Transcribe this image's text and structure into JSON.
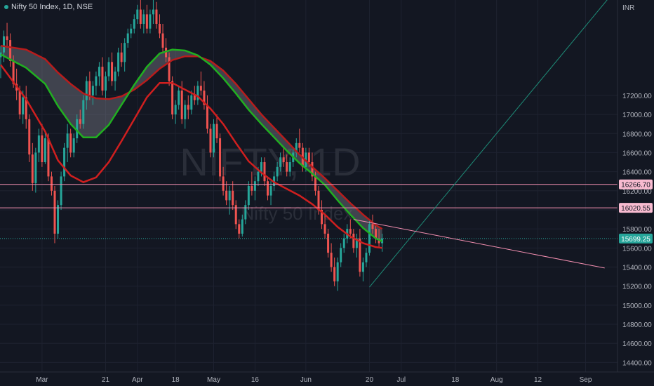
{
  "header": {
    "title": "Nifty 50 Index, 1D, NSE"
  },
  "watermark": {
    "symbol": "NIFTY, 1D",
    "name": "Nifty 50 Index"
  },
  "colors": {
    "background": "#131722",
    "grid": "#1e2230",
    "up": "#26a69a",
    "down": "#ef5350",
    "ma_fast": "#d01f1f",
    "ma_green": "#20b020",
    "ma_slow": "#b81c1c",
    "hline": "#f48fb1",
    "trend_up": "#1e8c78",
    "trend_down": "#f48fb1"
  },
  "chart_data": {
    "type": "candlestick",
    "currency": "INR",
    "ylim": [
      14300,
      18200
    ],
    "y_ticks": [
      "14400.00",
      "14600.00",
      "14800.00",
      "15000.00",
      "15200.00",
      "15400.00",
      "15600.00",
      "15800.00",
      "16000.00",
      "16200.00",
      "16400.00",
      "16600.00",
      "16800.00",
      "17000.00",
      "17200.00"
    ],
    "x_labels": [
      {
        "day": 13,
        "label": "Mar"
      },
      {
        "day": 33,
        "label": "21"
      },
      {
        "day": 43,
        "label": "Apr"
      },
      {
        "day": 55,
        "label": "18"
      },
      {
        "day": 67,
        "label": "May"
      },
      {
        "day": 80,
        "label": "16"
      },
      {
        "day": 96,
        "label": "Jun"
      },
      {
        "day": 116,
        "label": "20"
      },
      {
        "day": 126,
        "label": "Jul"
      },
      {
        "day": 143,
        "label": "18"
      },
      {
        "day": 156,
        "label": "Aug"
      },
      {
        "day": 169,
        "label": "12"
      },
      {
        "day": 184,
        "label": "Sep"
      }
    ],
    "candles": [
      [
        0,
        17600,
        17720,
        17380,
        17650
      ],
      [
        1,
        17650,
        17880,
        17550,
        17820
      ],
      [
        2,
        17820,
        17960,
        17700,
        17780
      ],
      [
        3,
        17780,
        17850,
        17500,
        17560
      ],
      [
        4,
        17560,
        17620,
        17280,
        17320
      ],
      [
        5,
        17320,
        17480,
        17150,
        17250
      ],
      [
        6,
        17250,
        17300,
        16950,
        17000
      ],
      [
        7,
        17000,
        17250,
        16900,
        17180
      ],
      [
        8,
        17180,
        17300,
        16850,
        16950
      ],
      [
        9,
        16950,
        17000,
        16500,
        16580
      ],
      [
        10,
        16580,
        16700,
        16200,
        16280
      ],
      [
        11,
        16280,
        16650,
        16180,
        16600
      ],
      [
        12,
        16600,
        16850,
        16500,
        16780
      ],
      [
        13,
        16780,
        16900,
        16450,
        16500
      ],
      [
        14,
        16500,
        16820,
        16480,
        16750
      ],
      [
        15,
        16750,
        16800,
        16300,
        16350
      ],
      [
        16,
        16350,
        16400,
        16150,
        16200
      ],
      [
        17,
        16200,
        16250,
        15650,
        15750
      ],
      [
        18,
        15750,
        16100,
        15700,
        16050
      ],
      [
        19,
        16050,
        16400,
        16000,
        16350
      ],
      [
        20,
        16350,
        16700,
        16300,
        16650
      ],
      [
        21,
        16650,
        16900,
        16500,
        16800
      ],
      [
        22,
        16800,
        16850,
        16550,
        16600
      ],
      [
        23,
        16600,
        16800,
        16550,
        16750
      ],
      [
        24,
        16750,
        17000,
        16700,
        16950
      ],
      [
        25,
        16950,
        17050,
        16850,
        16900
      ],
      [
        26,
        16900,
        17200,
        16850,
        17150
      ],
      [
        27,
        17150,
        17400,
        17050,
        17350
      ],
      [
        28,
        17350,
        17450,
        17150,
        17200
      ],
      [
        29,
        17200,
        17350,
        17100,
        17300
      ],
      [
        30,
        17300,
        17450,
        17200,
        17400
      ],
      [
        31,
        17400,
        17550,
        17300,
        17500
      ],
      [
        32,
        17500,
        17600,
        17200,
        17250
      ],
      [
        33,
        17250,
        17450,
        17150,
        17400
      ],
      [
        34,
        17400,
        17600,
        17350,
        17550
      ],
      [
        35,
        17550,
        17650,
        17300,
        17350
      ],
      [
        36,
        17350,
        17500,
        17250,
        17450
      ],
      [
        37,
        17450,
        17700,
        17400,
        17650
      ],
      [
        38,
        17650,
        17750,
        17500,
        17550
      ],
      [
        39,
        17550,
        17800,
        17450,
        17750
      ],
      [
        40,
        17750,
        17900,
        17700,
        17850
      ],
      [
        41,
        17850,
        17950,
        17800,
        17900
      ],
      [
        42,
        17900,
        18050,
        17850,
        18000
      ],
      [
        43,
        18000,
        18150,
        17950,
        18100
      ],
      [
        44,
        18100,
        18200,
        17900,
        17950
      ],
      [
        45,
        17950,
        18100,
        17850,
        18050
      ],
      [
        46,
        18050,
        18150,
        17850,
        17900
      ],
      [
        47,
        17900,
        18100,
        17850,
        18050
      ],
      [
        48,
        18050,
        18200,
        17950,
        18100
      ],
      [
        49,
        18100,
        18180,
        17900,
        17950
      ],
      [
        50,
        17950,
        18050,
        17800,
        17850
      ],
      [
        51,
        17850,
        17950,
        17650,
        17700
      ],
      [
        52,
        17700,
        17800,
        17550,
        17600
      ],
      [
        53,
        17600,
        17650,
        17300,
        17350
      ],
      [
        54,
        17350,
        17400,
        16950,
        17000
      ],
      [
        55,
        17000,
        17150,
        16900,
        17100
      ],
      [
        56,
        17100,
        17300,
        17050,
        17250
      ],
      [
        57,
        17250,
        17350,
        16900,
        16950
      ],
      [
        58,
        16950,
        17150,
        16850,
        17100
      ],
      [
        59,
        17100,
        17200,
        16950,
        17050
      ],
      [
        60,
        17050,
        17250,
        17000,
        17200
      ],
      [
        61,
        17200,
        17300,
        17100,
        17150
      ],
      [
        62,
        17150,
        17350,
        17100,
        17300
      ],
      [
        63,
        17300,
        17450,
        17200,
        17250
      ],
      [
        64,
        17250,
        17350,
        17050,
        17100
      ],
      [
        65,
        17100,
        17200,
        16800,
        16850
      ],
      [
        66,
        16850,
        16900,
        16550,
        16600
      ],
      [
        67,
        16600,
        16950,
        16550,
        16900
      ],
      [
        68,
        16900,
        17000,
        16700,
        16750
      ],
      [
        69,
        16750,
        16800,
        16300,
        16350
      ],
      [
        70,
        16350,
        16450,
        16150,
        16200
      ],
      [
        71,
        16200,
        16300,
        16050,
        16100
      ],
      [
        72,
        16100,
        16250,
        15950,
        16200
      ],
      [
        73,
        16200,
        16300,
        16000,
        16050
      ],
      [
        74,
        16050,
        16100,
        15800,
        15850
      ],
      [
        75,
        15850,
        15900,
        15700,
        15750
      ],
      [
        76,
        15750,
        15950,
        15720,
        15900
      ],
      [
        77,
        15900,
        16100,
        15850,
        16050
      ],
      [
        78,
        16050,
        16300,
        16000,
        16250
      ],
      [
        79,
        16250,
        16400,
        16150,
        16200
      ],
      [
        80,
        16200,
        16350,
        16100,
        16300
      ],
      [
        81,
        16300,
        16450,
        16250,
        16400
      ],
      [
        82,
        16400,
        16550,
        16350,
        16500
      ],
      [
        83,
        16500,
        16550,
        16250,
        16300
      ],
      [
        84,
        16300,
        16350,
        16100,
        16150
      ],
      [
        85,
        16150,
        16300,
        16050,
        16250
      ],
      [
        86,
        16250,
        16400,
        16200,
        16350
      ],
      [
        87,
        16350,
        16500,
        16300,
        16450
      ],
      [
        88,
        16450,
        16600,
        16400,
        16550
      ],
      [
        89,
        16550,
        16650,
        16450,
        16500
      ],
      [
        90,
        16500,
        16580,
        16350,
        16400
      ],
      [
        91,
        16400,
        16550,
        16350,
        16500
      ],
      [
        92,
        16500,
        16650,
        16450,
        16600
      ],
      [
        93,
        16600,
        16750,
        16550,
        16700
      ],
      [
        94,
        16700,
        16850,
        16600,
        16650
      ],
      [
        95,
        16650,
        16700,
        16400,
        16450
      ],
      [
        96,
        16450,
        16650,
        16400,
        16600
      ],
      [
        97,
        16600,
        16650,
        16450,
        16500
      ],
      [
        98,
        16500,
        16600,
        16300,
        16350
      ],
      [
        99,
        16350,
        16400,
        16150,
        16200
      ],
      [
        100,
        16200,
        16250,
        15950,
        16000
      ],
      [
        101,
        16000,
        16100,
        15800,
        15850
      ],
      [
        102,
        15850,
        15950,
        15700,
        15750
      ],
      [
        103,
        15750,
        15800,
        15500,
        15550
      ],
      [
        104,
        15550,
        15650,
        15350,
        15400
      ],
      [
        105,
        15400,
        15500,
        15200,
        15250
      ],
      [
        106,
        15250,
        15500,
        15150,
        15450
      ],
      [
        107,
        15450,
        15650,
        15400,
        15600
      ],
      [
        108,
        15600,
        15750,
        15550,
        15700
      ],
      [
        109,
        15700,
        15850,
        15650,
        15800
      ],
      [
        110,
        15800,
        15900,
        15700,
        15750
      ],
      [
        111,
        15750,
        15800,
        15550,
        15600
      ],
      [
        112,
        15600,
        15750,
        15500,
        15700
      ],
      [
        113,
        15700,
        15800,
        15300,
        15350
      ],
      [
        114,
        15350,
        15500,
        15250,
        15450
      ],
      [
        115,
        15450,
        15600,
        15400,
        15550
      ],
      [
        116,
        15550,
        15900,
        15520,
        15850
      ],
      [
        117,
        15850,
        15950,
        15750,
        15800
      ],
      [
        118,
        15800,
        15850,
        15650,
        15700
      ],
      [
        119,
        15700,
        15800,
        15600,
        15650
      ],
      [
        120,
        15650,
        15750,
        15560,
        15699.25
      ]
    ],
    "ma_fast": [
      [
        0,
        17520
      ],
      [
        8,
        17160
      ],
      [
        14,
        16820
      ],
      [
        18,
        16520
      ],
      [
        22,
        16360
      ],
      [
        26,
        16290
      ],
      [
        30,
        16340
      ],
      [
        34,
        16500
      ],
      [
        38,
        16720
      ],
      [
        42,
        16950
      ],
      [
        46,
        17180
      ],
      [
        50,
        17330
      ],
      [
        54,
        17330
      ],
      [
        58,
        17260
      ],
      [
        62,
        17190
      ],
      [
        66,
        17060
      ],
      [
        70,
        16900
      ],
      [
        74,
        16700
      ],
      [
        78,
        16510
      ],
      [
        82,
        16390
      ],
      [
        86,
        16290
      ],
      [
        90,
        16220
      ],
      [
        94,
        16150
      ],
      [
        98,
        16060
      ],
      [
        102,
        15950
      ],
      [
        106,
        15820
      ],
      [
        110,
        15720
      ],
      [
        114,
        15650
      ],
      [
        118,
        15610
      ],
      [
        120,
        15600
      ]
    ],
    "ma_green": [
      [
        0,
        17630
      ],
      [
        8,
        17490
      ],
      [
        14,
        17320
      ],
      [
        18,
        17090
      ],
      [
        22,
        16900
      ],
      [
        26,
        16760
      ],
      [
        30,
        16760
      ],
      [
        34,
        16890
      ],
      [
        38,
        17100
      ],
      [
        42,
        17310
      ],
      [
        46,
        17500
      ],
      [
        50,
        17640
      ],
      [
        54,
        17680
      ],
      [
        58,
        17670
      ],
      [
        62,
        17620
      ],
      [
        66,
        17520
      ],
      [
        70,
        17380
      ],
      [
        74,
        17220
      ],
      [
        78,
        17050
      ],
      [
        82,
        16900
      ],
      [
        86,
        16760
      ],
      [
        90,
        16620
      ],
      [
        94,
        16490
      ],
      [
        98,
        16380
      ],
      [
        102,
        16260
      ],
      [
        106,
        16100
      ],
      [
        110,
        15950
      ],
      [
        114,
        15810
      ],
      [
        118,
        15700
      ],
      [
        120,
        15670
      ]
    ],
    "ma_slow": [
      [
        0,
        17720
      ],
      [
        8,
        17680
      ],
      [
        14,
        17580
      ],
      [
        18,
        17440
      ],
      [
        22,
        17320
      ],
      [
        26,
        17220
      ],
      [
        30,
        17170
      ],
      [
        34,
        17160
      ],
      [
        38,
        17190
      ],
      [
        42,
        17260
      ],
      [
        46,
        17360
      ],
      [
        50,
        17480
      ],
      [
        54,
        17570
      ],
      [
        58,
        17610
      ],
      [
        62,
        17610
      ],
      [
        66,
        17560
      ],
      [
        70,
        17460
      ],
      [
        74,
        17320
      ],
      [
        78,
        17160
      ],
      [
        82,
        17000
      ],
      [
        86,
        16860
      ],
      [
        90,
        16720
      ],
      [
        94,
        16580
      ],
      [
        98,
        16450
      ],
      [
        102,
        16330
      ],
      [
        106,
        16200
      ],
      [
        110,
        16070
      ],
      [
        114,
        15950
      ],
      [
        118,
        15840
      ],
      [
        120,
        15800
      ]
    ],
    "horizontal_levels": [
      16266.7,
      16020.55
    ],
    "last_price": 15699.25,
    "labels": {
      "level_high": "16266.70",
      "level_low": "16020.55",
      "last": "15699.25"
    },
    "trendline_up": [
      [
        116,
        15190
      ],
      [
        192,
        18250
      ]
    ],
    "trendline_down": [
      [
        111,
        15900
      ],
      [
        190,
        15390
      ]
    ]
  }
}
